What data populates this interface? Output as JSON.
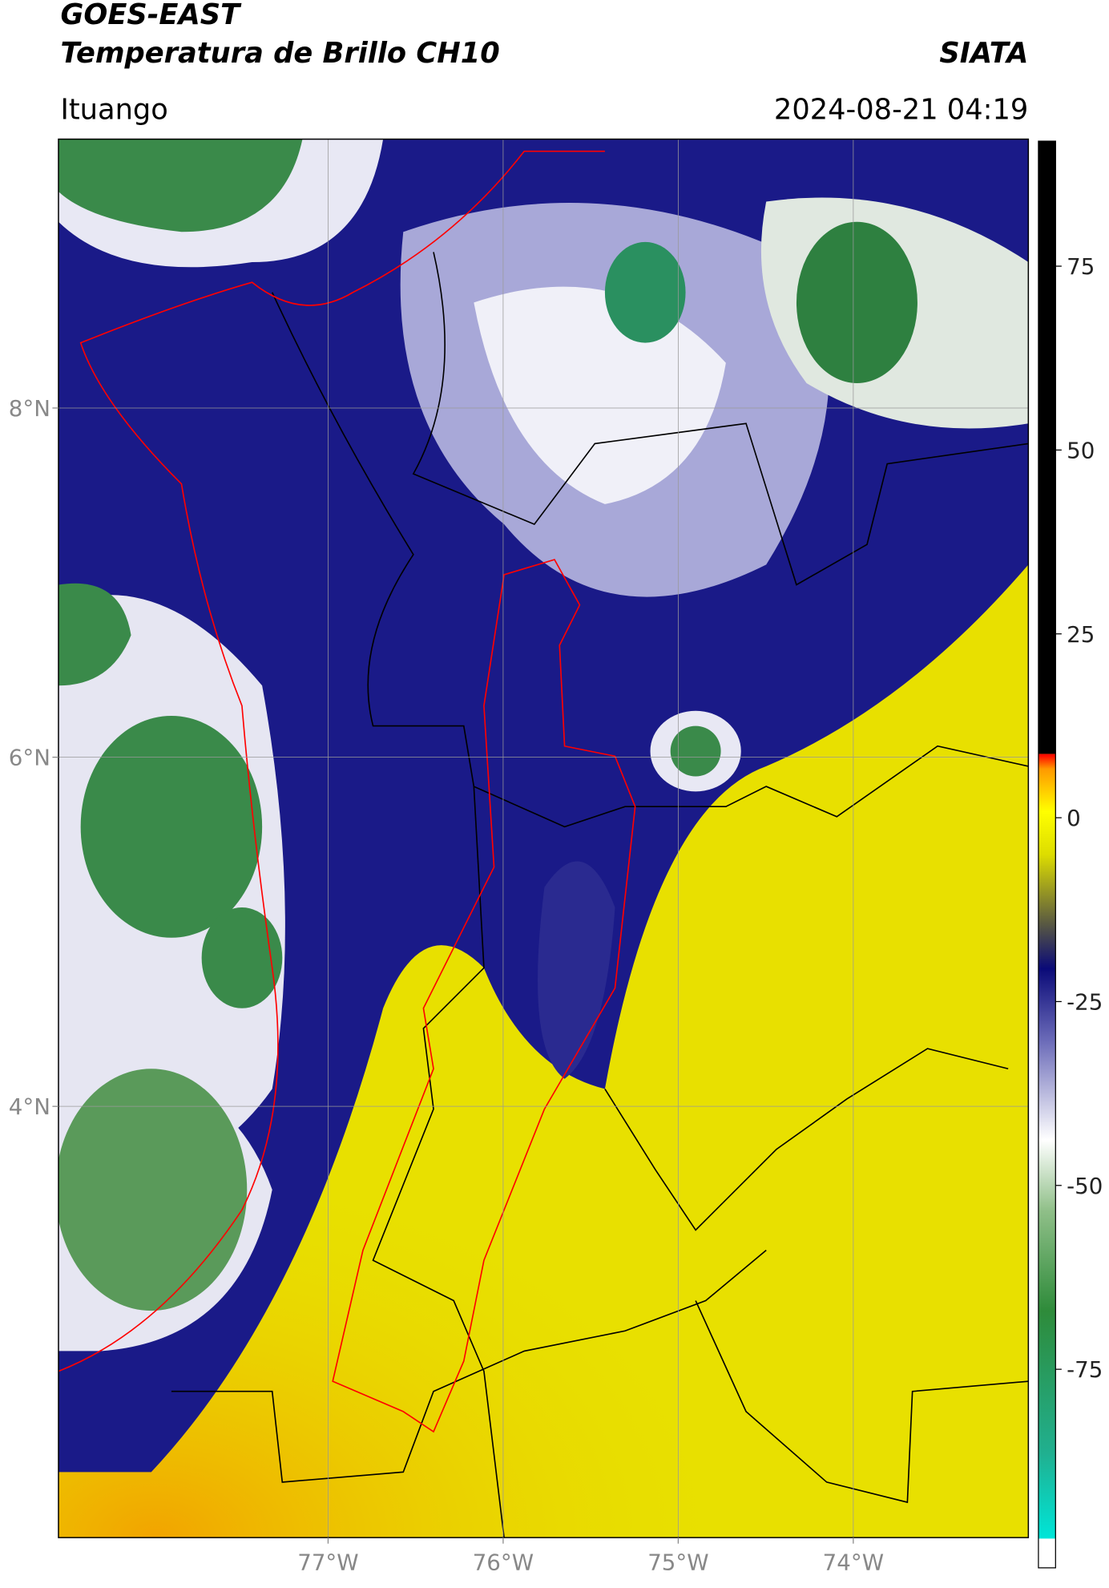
{
  "header": {
    "title": "GOES-EAST",
    "subtitle": "Temperatura de Brillo CH10",
    "source": "SIATA",
    "location": "Ituango",
    "timestamp": "2024-08-21 04:19"
  },
  "map": {
    "xlim": [
      -78.54,
      -73.0
    ],
    "ylim": [
      1.53,
      9.54
    ],
    "xticks": [
      {
        "value": -77,
        "label": "77°W"
      },
      {
        "value": -76,
        "label": "76°W"
      },
      {
        "value": -75,
        "label": "75°W"
      },
      {
        "value": -74,
        "label": "74°W"
      }
    ],
    "yticks": [
      {
        "value": 8,
        "label": "8°N"
      },
      {
        "value": 6,
        "label": "6°N"
      },
      {
        "value": 4,
        "label": "4°N"
      }
    ]
  },
  "colorbar": {
    "lim": [
      -102,
      92
    ],
    "ticks": [
      75,
      50,
      25,
      0,
      -25,
      -50,
      -75
    ]
  }
}
